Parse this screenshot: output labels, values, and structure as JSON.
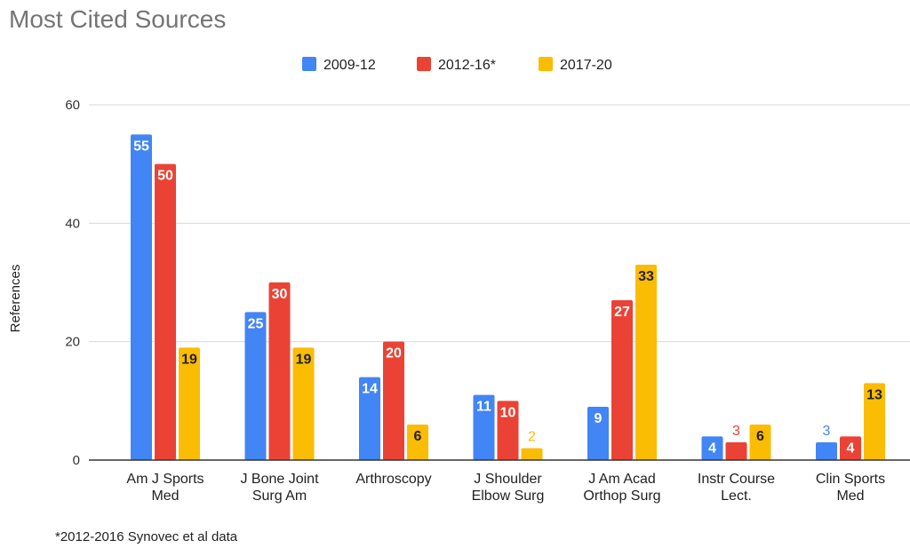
{
  "chart_data": {
    "type": "bar",
    "title": "Most Cited Sources",
    "ylabel": "References",
    "xlabel": "",
    "ylim": [
      0,
      60
    ],
    "yticks": [
      0,
      20,
      40,
      60
    ],
    "grid": true,
    "legend_position": "top-center",
    "categories": [
      [
        "Am J Sports",
        "Med"
      ],
      [
        "J Bone Joint",
        "Surg Am"
      ],
      [
        "Arthroscopy"
      ],
      [
        "J Shoulder",
        "Elbow Surg"
      ],
      [
        "J Am Acad",
        "Orthop Surg"
      ],
      [
        "Instr Course",
        "Lect."
      ],
      [
        "Clin Sports",
        "Med"
      ]
    ],
    "series": [
      {
        "name": "2009-12",
        "color": "#4285f4",
        "values": [
          55,
          25,
          14,
          11,
          9,
          4,
          3
        ]
      },
      {
        "name": "2012-16*",
        "color": "#ea4335",
        "values": [
          50,
          30,
          20,
          10,
          27,
          3,
          4
        ]
      },
      {
        "name": "2017-20",
        "color": "#fbbc04",
        "values": [
          19,
          19,
          6,
          2,
          33,
          6,
          13
        ]
      }
    ],
    "footnote": "*2012-2016 Synovec et al data"
  }
}
